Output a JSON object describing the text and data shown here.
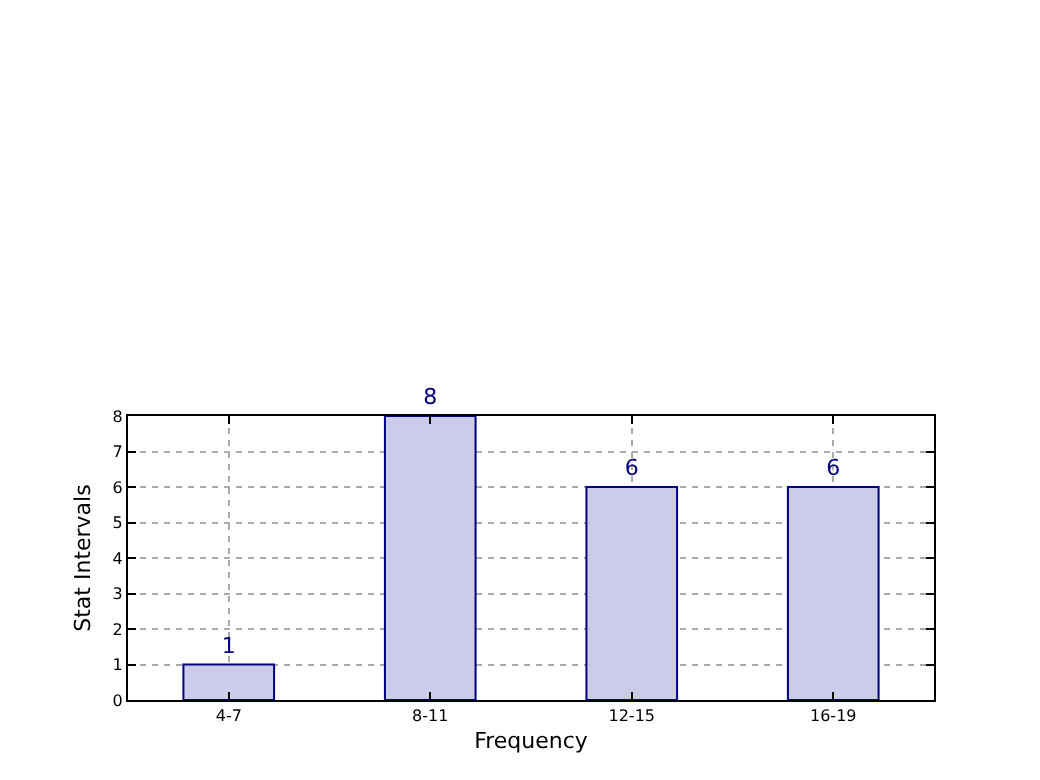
{
  "chart_data": {
    "type": "bar",
    "xlabel": "Frequency",
    "ylabel": "Stat Intervals",
    "categories": [
      "4-7",
      "8-11",
      "12-15",
      "16-19"
    ],
    "values": [
      1,
      8,
      6,
      6
    ],
    "color": "#ccccea",
    "ylim": [
      0,
      8
    ],
    "yticks": [
      0,
      1,
      2,
      3,
      4,
      5,
      6,
      7,
      8
    ],
    "grid": true,
    "data_labels": true
  }
}
